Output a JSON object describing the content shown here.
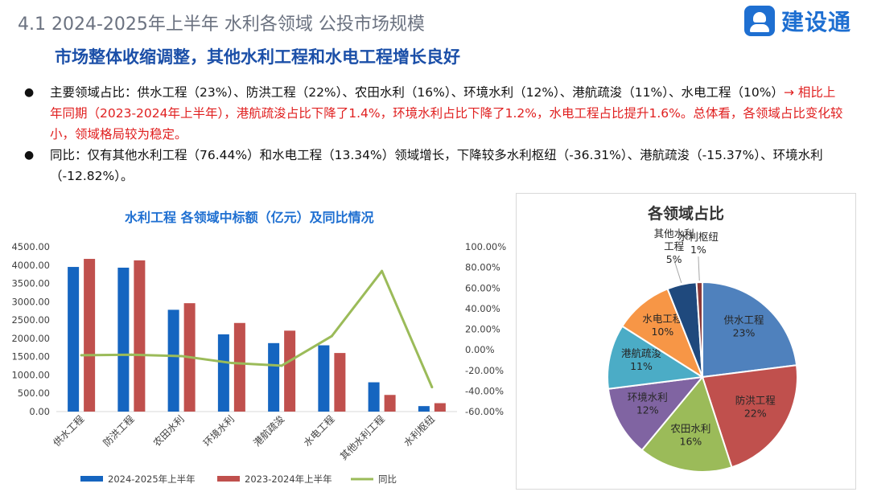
{
  "header": {
    "title": "4.1  2024-2025年上半年 水利各领域 公投市场规模",
    "logo_text": "建设通"
  },
  "subtitle": "市场整体收缩调整，其他水利工程和水电工程增长良好",
  "bullets": [
    {
      "text": "主要领域占比：供水工程（23%）、防洪工程（22%）、农田水利（16%）、环境水利（12%）、港航疏浚（11%）、水电工程（10%）",
      "highlight": "→ 相比上年同期（2023-2024年上半年），港航疏浚占比下降了1.4%，环境水利占比下降了1.2%，水电工程占比提升1.6%。总体看，各领域占比变化较小，领域格局较为稳定。"
    },
    {
      "text": "同比：仅有其他水利工程（76.44%）和水电工程（13.34%）领域增长，下降较多水利枢纽（-36.31%）、港航疏浚（-15.37%）、环境水利（-12.82%）。",
      "highlight": ""
    }
  ],
  "colors": {
    "series_2025": "#1565c0",
    "series_2024": "#c0504d",
    "yoy_line": "#9bbb59",
    "highlight": "#e02020"
  },
  "chart_data": [
    {
      "type": "bar",
      "title": "水利工程  各领域中标额（亿元）及同比情况",
      "categories": [
        "供水工程",
        "防洪工程",
        "农田水利",
        "环境水利",
        "港航疏浚",
        "水电工程",
        "其他水利工程",
        "水利枢纽"
      ],
      "series": [
        {
          "name": "2024-2025年上半年",
          "type": "bar",
          "axis": "left",
          "values": [
            3950,
            3930,
            2780,
            2110,
            1870,
            1810,
            800,
            150
          ]
        },
        {
          "name": "2023-2024年上半年",
          "type": "bar",
          "axis": "left",
          "values": [
            4170,
            4130,
            2960,
            2420,
            2210,
            1600,
            455,
            230
          ]
        },
        {
          "name": "同比",
          "type": "line",
          "axis": "right",
          "values": [
            -5.3,
            -4.8,
            -6.1,
            -12.82,
            -15.37,
            13.34,
            76.44,
            -36.31
          ]
        }
      ],
      "ylim_left": [
        0,
        4500
      ],
      "yticks_left": [
        "0.00",
        "500.00",
        "1000.00",
        "1500.00",
        "2000.00",
        "2500.00",
        "3000.00",
        "3500.00",
        "4000.00",
        "4500.00"
      ],
      "ylim_right": [
        -60,
        100
      ],
      "yticks_right": [
        "-60.00%",
        "-40.00%",
        "-20.00%",
        "0.00%",
        "20.00%",
        "40.00%",
        "60.00%",
        "80.00%",
        "100.00%"
      ],
      "legend_position": "bottom",
      "grid": false
    },
    {
      "type": "pie",
      "title": "各领域占比",
      "slices": [
        {
          "label": "供水工程",
          "value": 23,
          "pct": "23%",
          "color": "#4f81bd"
        },
        {
          "label": "防洪工程",
          "value": 22,
          "pct": "22%",
          "color": "#c0504d"
        },
        {
          "label": "农田水利",
          "value": 16,
          "pct": "16%",
          "color": "#9bbb59"
        },
        {
          "label": "环境水利",
          "value": 12,
          "pct": "12%",
          "color": "#8064a2"
        },
        {
          "label": "港航疏浚",
          "value": 11,
          "pct": "11%",
          "color": "#4bacc6"
        },
        {
          "label": "水电工程",
          "value": 10,
          "pct": "10%",
          "color": "#f79646"
        },
        {
          "label": "其他水利工程",
          "value": 5,
          "pct": "5%",
          "color": "#1f497d"
        },
        {
          "label": "水利枢纽",
          "value": 1,
          "pct": "1%",
          "color": "#8b3a3a"
        }
      ]
    }
  ]
}
